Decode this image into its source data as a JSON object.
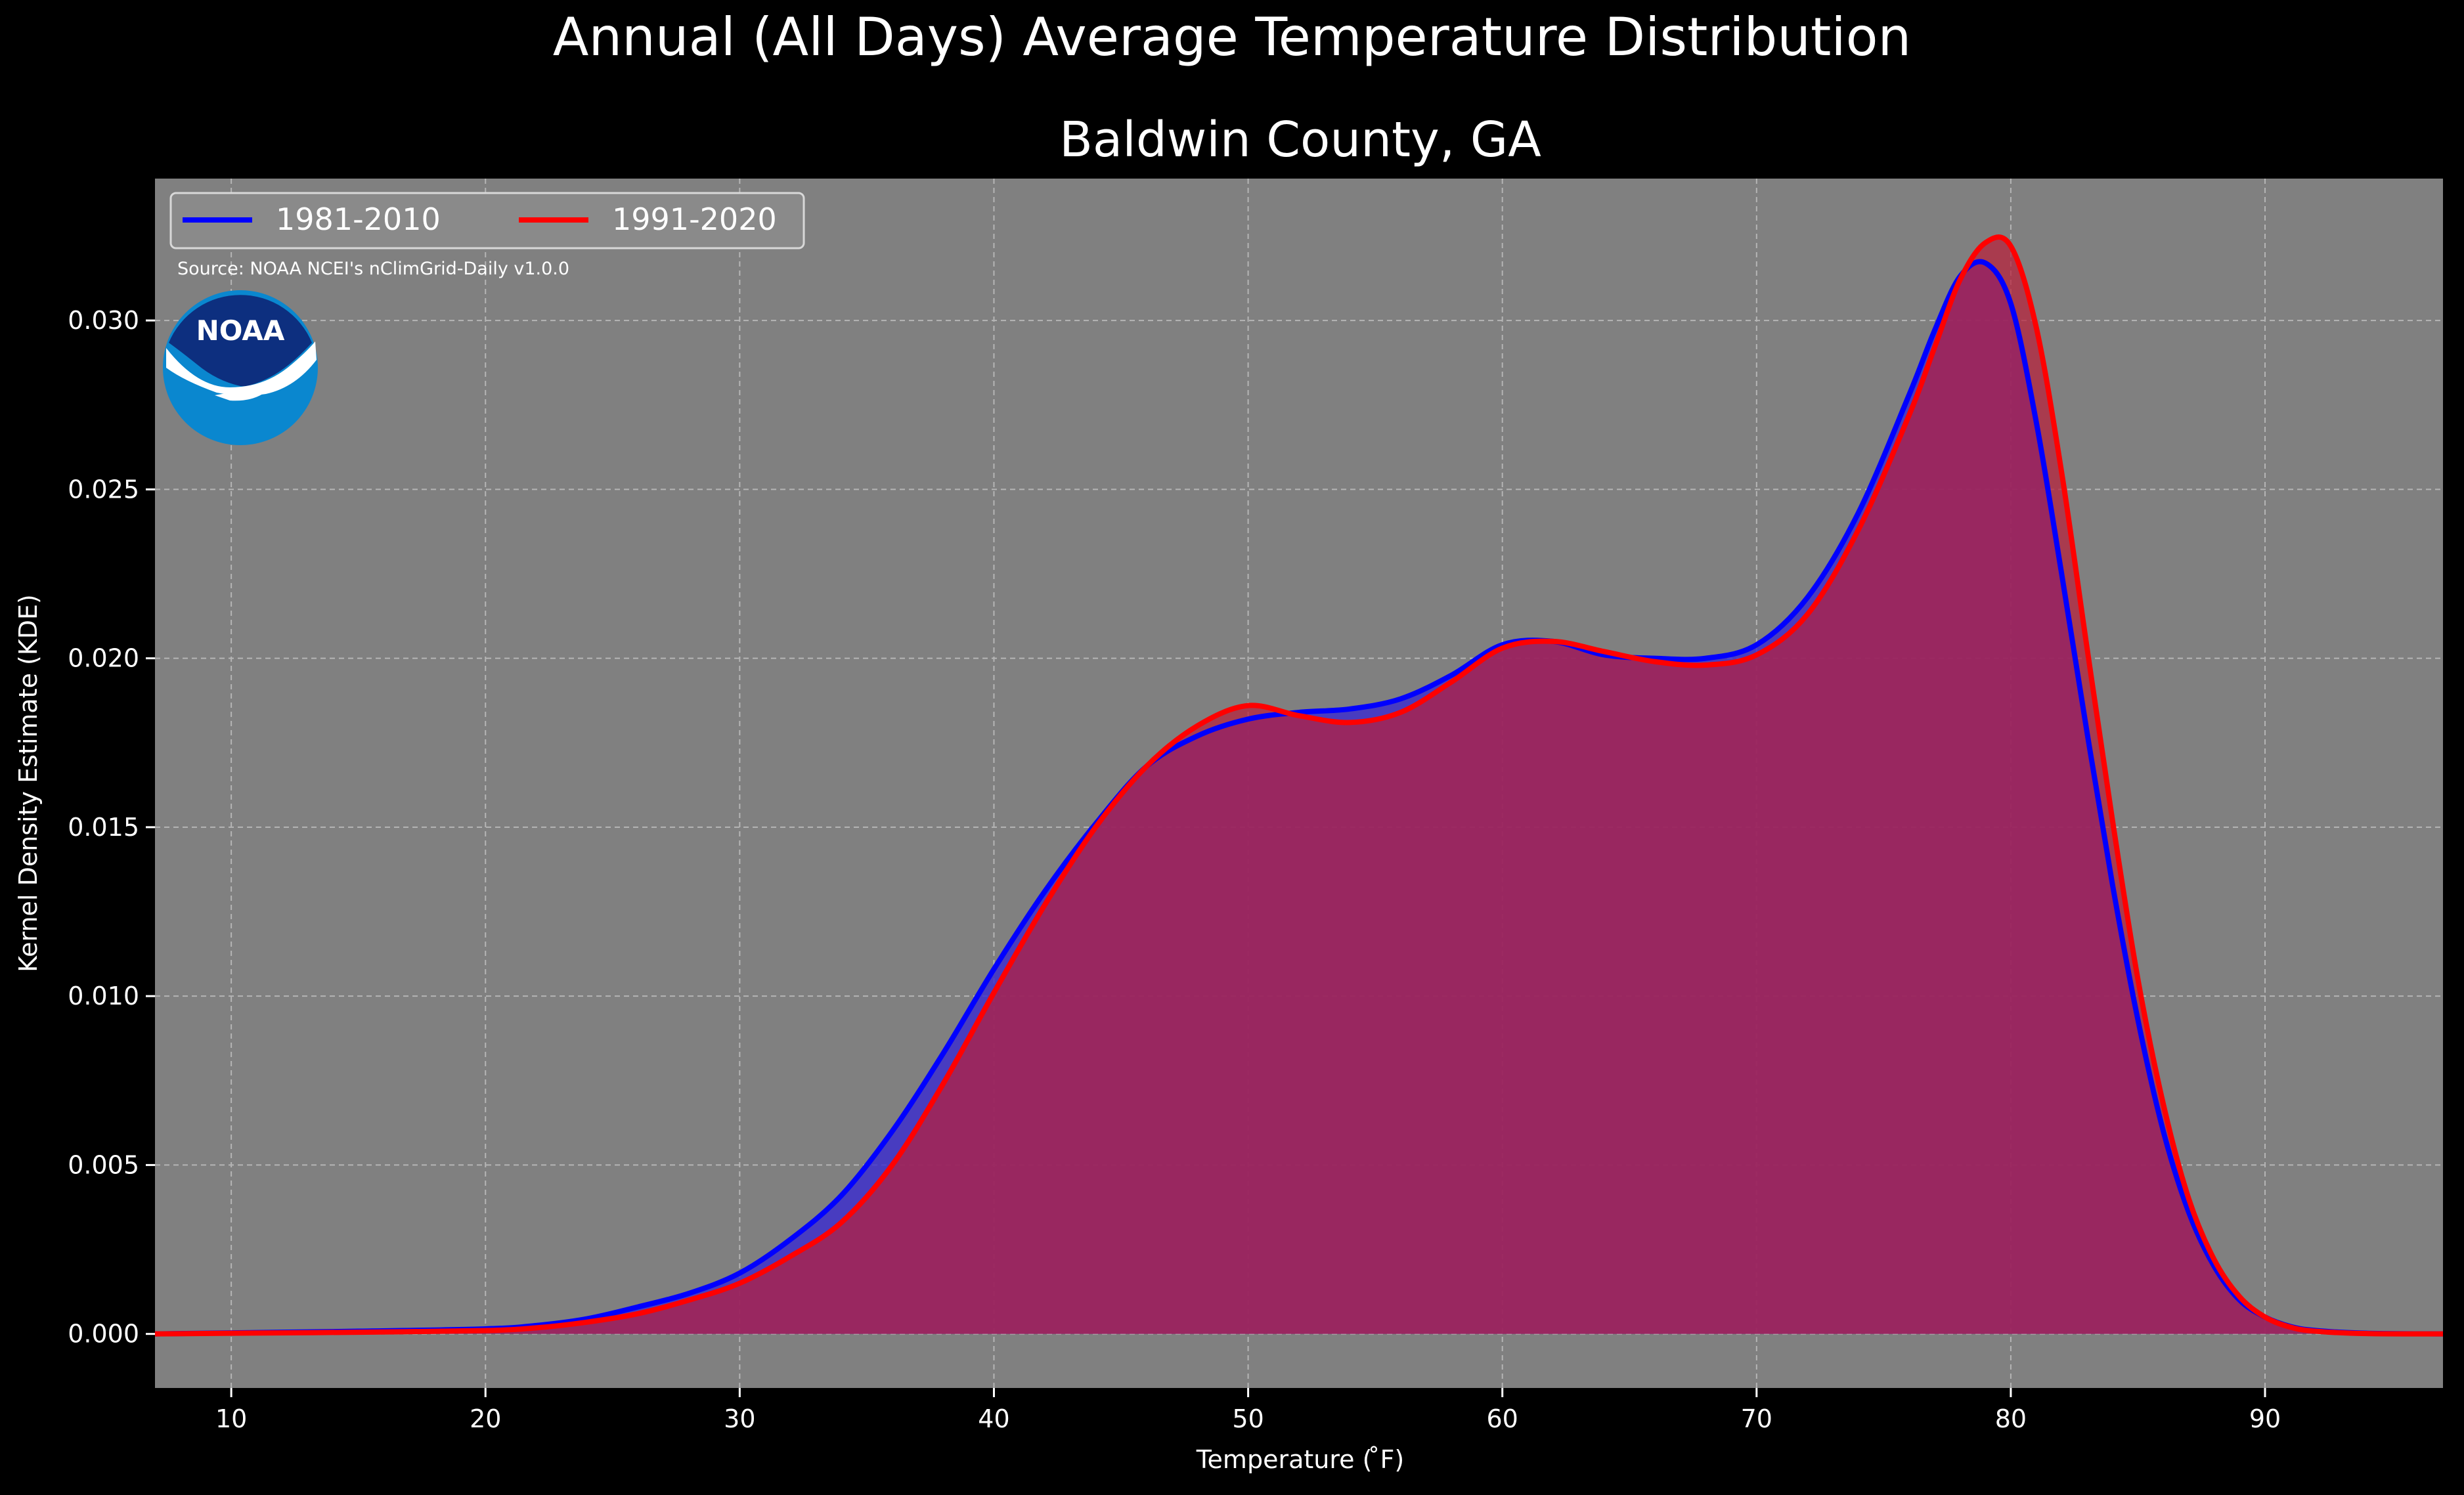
{
  "chart_data": {
    "type": "area",
    "suptitle": "Annual (All Days) Average Temperature Distribution",
    "title": "Baldwin County, GA",
    "xlabel": "Temperature ($^\\circ$F)",
    "xlabel_display": "Temperature ( ̊F)",
    "ylabel": "Kernel Density Estimate (KDE)",
    "xlim": [
      7,
      97
    ],
    "ylim": [
      -0.0016,
      0.0342
    ],
    "xticks": [
      10,
      20,
      30,
      40,
      50,
      60,
      70,
      80,
      90
    ],
    "xtick_labels": [
      "10",
      "20",
      "30",
      "40",
      "50",
      "60",
      "70",
      "80",
      "90"
    ],
    "yticks": [
      0.0,
      0.005,
      0.01,
      0.015,
      0.02,
      0.025,
      0.03
    ],
    "ytick_labels": [
      "0.000",
      "0.005",
      "0.010",
      "0.015",
      "0.020",
      "0.025",
      "0.030"
    ],
    "grid": true,
    "legend_position": "upper-left",
    "source_note": "Source: NOAA NCEI's nClimGrid-Daily v1.0.0",
    "logo_text": "NOAA",
    "colors": {
      "figure_bg": "#000000",
      "axes_bg": "#808080",
      "grid": "#b3b3b3",
      "text": "#ffffff"
    },
    "series": [
      {
        "name": "1981-2010",
        "color": "#0000ff",
        "fill": "#3a2bd0",
        "x": [
          7,
          10,
          15,
          20,
          22,
          24,
          26,
          28,
          30,
          32,
          34,
          36,
          38,
          40,
          42,
          44,
          46,
          48,
          50,
          52,
          54,
          56,
          58,
          60,
          62,
          64,
          66,
          68,
          70,
          72,
          74,
          76,
          77,
          78,
          79,
          80,
          81,
          82,
          83,
          84,
          85,
          86,
          87,
          88,
          89,
          90,
          91,
          92,
          94,
          97
        ],
        "values": [
          0.0,
          3e-05,
          8e-05,
          0.00015,
          0.00025,
          0.00045,
          0.0008,
          0.0012,
          0.0018,
          0.0028,
          0.0041,
          0.006,
          0.0083,
          0.0108,
          0.0131,
          0.0151,
          0.0168,
          0.0177,
          0.0182,
          0.0184,
          0.0185,
          0.0188,
          0.0195,
          0.0204,
          0.0205,
          0.0201,
          0.02,
          0.02,
          0.0204,
          0.0218,
          0.0243,
          0.0278,
          0.0297,
          0.0313,
          0.0317,
          0.0305,
          0.027,
          0.0225,
          0.0178,
          0.0133,
          0.0093,
          0.006,
          0.0036,
          0.002,
          0.001,
          0.0005,
          0.00022,
          0.0001,
          2e-05,
          0.0
        ]
      },
      {
        "name": "1991-2020",
        "color": "#ff0000",
        "fill": "#b8203a",
        "x": [
          7,
          10,
          15,
          20,
          22,
          24,
          26,
          28,
          30,
          32,
          34,
          36,
          38,
          40,
          42,
          44,
          46,
          48,
          50,
          52,
          54,
          56,
          58,
          60,
          62,
          64,
          66,
          68,
          70,
          72,
          74,
          76,
          77,
          78,
          79,
          80,
          81,
          82,
          83,
          84,
          85,
          86,
          87,
          88,
          89,
          90,
          91,
          92,
          94,
          97
        ],
        "values": [
          0.0,
          2e-05,
          5e-05,
          0.0001,
          0.00018,
          0.00035,
          0.0006,
          0.001,
          0.0015,
          0.0023,
          0.0033,
          0.005,
          0.0074,
          0.0101,
          0.0127,
          0.015,
          0.0168,
          0.018,
          0.0186,
          0.0183,
          0.0181,
          0.0184,
          0.0193,
          0.0203,
          0.0205,
          0.0202,
          0.0199,
          0.0198,
          0.0201,
          0.0213,
          0.0238,
          0.0272,
          0.0292,
          0.0312,
          0.0323,
          0.0322,
          0.0298,
          0.0255,
          0.0203,
          0.0152,
          0.0105,
          0.0068,
          0.004,
          0.0022,
          0.0011,
          0.0005,
          0.0002,
          8e-05,
          1e-05,
          0.0
        ]
      }
    ]
  }
}
